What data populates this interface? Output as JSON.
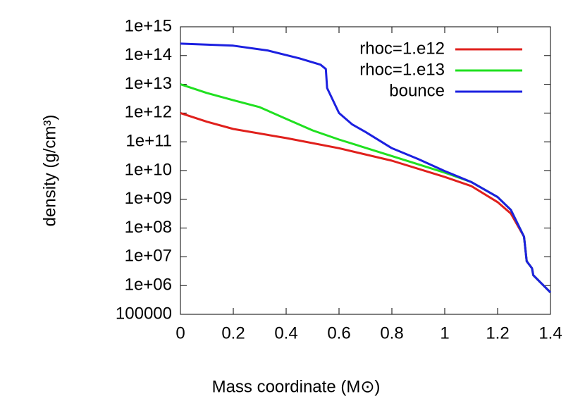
{
  "chart_data": {
    "type": "line",
    "xlabel": "Mass coordinate (M⊙)",
    "ylabel": "density (g/cm³)",
    "log_y": true,
    "legend": "top-right",
    "xlim": [
      0,
      1.4
    ],
    "xticks": [
      0,
      0.2,
      0.4,
      0.6,
      0.8,
      1,
      1.2,
      1.4
    ],
    "ylim": [
      100000,
      1000000000000000.0
    ],
    "yticks": [
      100000,
      {
        "value": 1000000.0,
        "label": "1e+06"
      },
      {
        "value": 10000000.0,
        "label": "1e+07"
      },
      {
        "value": 100000000.0,
        "label": "1e+08"
      },
      {
        "value": 1000000000.0,
        "label": "1e+09"
      },
      {
        "value": 10000000000.0,
        "label": "1e+10"
      },
      {
        "value": 100000000000.0,
        "label": "1e+11"
      },
      {
        "value": 1000000000000.0,
        "label": "1e+12"
      },
      {
        "value": 10000000000000.0,
        "label": "1e+13"
      },
      {
        "value": 100000000000000.0,
        "label": "1e+14"
      },
      {
        "value": 1000000000000000.0,
        "label": "1e+15"
      }
    ],
    "series": [
      {
        "name": "rhoc=1.e12",
        "color": "#e0201c",
        "x": [
          0,
          0.1,
          0.2,
          0.4,
          0.6,
          0.8,
          1.0,
          1.1,
          1.2,
          1.25,
          1.3,
          1.31,
          1.33,
          1.335,
          1.4
        ],
        "values": [
          1000000000000.0,
          500000000000.0,
          280000000000.0,
          135000000000.0,
          60000000000.0,
          22000000000.0,
          6000000000.0,
          2900000000.0,
          800000000.0,
          320000000.0,
          50000000.0,
          7000000.0,
          4000000.0,
          2300000.0,
          580000.0
        ]
      },
      {
        "name": "rhoc=1.e13",
        "color": "#20e020",
        "x": [
          0,
          0.1,
          0.2,
          0.3,
          0.4,
          0.5,
          0.6,
          0.8,
          1.0,
          1.1,
          1.2,
          1.25,
          1.3,
          1.31,
          1.33,
          1.335,
          1.4
        ],
        "values": [
          10000000000000.0,
          5000000000000.0,
          2800000000000.0,
          1600000000000.0,
          630000000000.0,
          250000000000.0,
          120000000000.0,
          32000000000.0,
          8500000000.0,
          4000000000.0,
          1200000000.0,
          430000000.0,
          50000000.0,
          7000000.0,
          4000000.0,
          2300000.0,
          580000.0
        ]
      },
      {
        "name": "bounce",
        "color": "#1c20e0",
        "x": [
          0,
          0.2,
          0.33,
          0.45,
          0.53,
          0.55,
          0.555,
          0.6,
          0.65,
          0.7,
          0.8,
          0.9,
          1.0,
          1.1,
          1.2,
          1.25,
          1.3,
          1.31,
          1.33,
          1.335,
          1.4
        ],
        "values": [
          260000000000000.0,
          220000000000000.0,
          150000000000000.0,
          80000000000000.0,
          48000000000000.0,
          34000000000000.0,
          7400000000000.0,
          1000000000000.0,
          400000000000.0,
          220000000000.0,
          60000000000.0,
          25000000000.0,
          9600000000.0,
          4000000000.0,
          1200000000.0,
          430000000.0,
          50000000.0,
          7000000.0,
          4000000.0,
          2300000.0,
          580000.0
        ]
      }
    ]
  }
}
